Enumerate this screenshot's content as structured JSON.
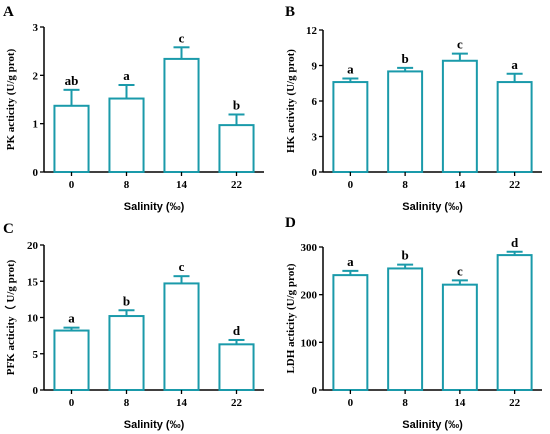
{
  "colors": {
    "bar": "#1a9aaa",
    "axis": "#000000",
    "fill": "#ffffff"
  },
  "chart_data": [
    {
      "panel": "A",
      "type": "bar",
      "categories": [
        "0",
        "8",
        "14",
        "22"
      ],
      "values": [
        1.37,
        1.52,
        2.34,
        0.97
      ],
      "errors": [
        0.33,
        0.28,
        0.24,
        0.22
      ],
      "labels": [
        "ab",
        "a",
        "c",
        "b"
      ],
      "xlabel": "Salinity (‰)",
      "ylabel": "PK acticity (U/g prot)",
      "ylim": [
        0,
        3
      ],
      "yticks": [
        "0",
        "1",
        "2",
        "3"
      ]
    },
    {
      "panel": "B",
      "type": "bar",
      "categories": [
        "0",
        "8",
        "14",
        "22"
      ],
      "values": [
        7.6,
        8.5,
        9.4,
        7.6
      ],
      "errors": [
        0.3,
        0.3,
        0.6,
        0.7
      ],
      "labels": [
        "a",
        "b",
        "c",
        "a"
      ],
      "xlabel": "Salinity (‰)",
      "ylabel": "HK activity (U/g prot)",
      "ylim": [
        0,
        12
      ],
      "yticks": [
        "0",
        "3",
        "6",
        "9",
        "12"
      ]
    },
    {
      "panel": "C",
      "type": "bar",
      "categories": [
        "0",
        "8",
        "14",
        "22"
      ],
      "values": [
        8.2,
        10.2,
        14.7,
        6.3
      ],
      "errors": [
        0.4,
        0.8,
        1.0,
        0.6
      ],
      "labels": [
        "a",
        "b",
        "c",
        "d"
      ],
      "xlabel": "Salinity (‰)",
      "ylabel": "PFK acticity（ U/g prot)",
      "ylim": [
        0,
        20
      ],
      "yticks": [
        "0",
        "5",
        "10",
        "15",
        "20"
      ]
    },
    {
      "panel": "D",
      "type": "bar",
      "categories": [
        "0",
        "8",
        "14",
        "22"
      ],
      "values": [
        241,
        255,
        221,
        283
      ],
      "errors": [
        9,
        8,
        9,
        7
      ],
      "labels": [
        "a",
        "b",
        "c",
        "d"
      ],
      "xlabel": "Salinity (‰)",
      "ylabel": "LDH acticity (U/g prot)",
      "ylim": [
        0,
        300
      ],
      "yticks": [
        "0",
        "100",
        "200",
        "300"
      ]
    }
  ]
}
